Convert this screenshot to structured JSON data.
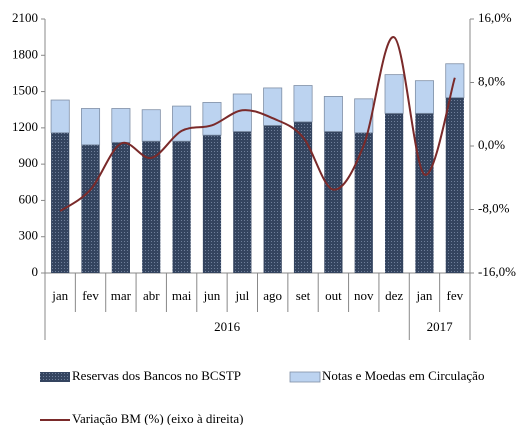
{
  "chart_data": {
    "type": "bar_line",
    "groups": [
      {
        "label": "2016",
        "months": [
          "jan",
          "fev",
          "mar",
          "abr",
          "mai",
          "jun",
          "jul",
          "ago",
          "set",
          "out",
          "nov",
          "dez"
        ]
      },
      {
        "label": "2017",
        "months": [
          "jan",
          "fev"
        ]
      }
    ],
    "series": [
      {
        "name": "Reservas dos Bancos no BCSTP",
        "color": "#34445f",
        "stacked": true,
        "values": [
          1160,
          1060,
          1080,
          1090,
          1090,
          1140,
          1170,
          1220,
          1250,
          1170,
          1160,
          1320,
          1320,
          1450
        ]
      },
      {
        "name": "Notas e Moedas em Circulação",
        "color": "#bcd3f0",
        "stacked": true,
        "values": [
          270,
          300,
          280,
          260,
          290,
          270,
          310,
          310,
          300,
          290,
          280,
          320,
          270,
          280
        ]
      },
      {
        "name": "Variação BM (%) (eixo à direita)",
        "color": "#7a2a2a",
        "axis": "y2",
        "type": "line",
        "values": [
          -8.2,
          -5.5,
          0.3,
          -1.5,
          1.9,
          2.6,
          4.5,
          3.5,
          1.1,
          -5.5,
          0.1,
          13.7,
          -3.6,
          8.6
        ]
      }
    ],
    "ylim": [
      0,
      2100
    ],
    "yticks": [
      0,
      300,
      600,
      900,
      1200,
      1500,
      1800,
      2100
    ],
    "y2lim": [
      -16,
      16
    ],
    "y2ticks": [
      {
        "value": -16,
        "label": "-16,0%"
      },
      {
        "value": -8,
        "label": "-8,0%"
      },
      {
        "value": 0,
        "label": "0,0%"
      },
      {
        "value": 8,
        "label": "8,0%"
      },
      {
        "value": 16,
        "label": "16,0%"
      }
    ],
    "legend": "bottom"
  }
}
